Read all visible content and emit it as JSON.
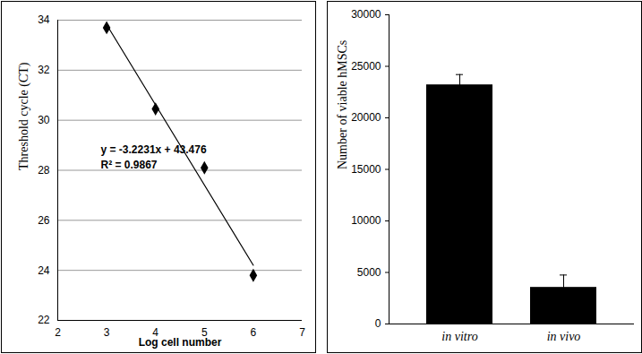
{
  "chart_data": [
    {
      "type": "scatter",
      "x": [
        3,
        4,
        5,
        6
      ],
      "values": [
        33.7,
        30.45,
        28.1,
        23.8
      ],
      "xlabel": "Log cell number",
      "ylabel": "Threshold cycle (CT)",
      "xlim": [
        2,
        7
      ],
      "xticks": [
        2,
        3,
        4,
        5,
        6,
        7
      ],
      "ylim": [
        22,
        34
      ],
      "yticks": [
        22,
        24,
        26,
        28,
        30,
        32,
        34
      ],
      "grid": true,
      "marker": "diamond",
      "color": "#000000",
      "annotations": [
        "y = -3.2231x + 43.476",
        "R² = 0.9867"
      ]
    },
    {
      "type": "bar",
      "categories": [
        "in vitro",
        "in vivo"
      ],
      "values": [
        23200,
        3550
      ],
      "errors": [
        1000,
        1200
      ],
      "ylabel": "Number of viable hMSCs",
      "ylim": [
        0,
        30000
      ],
      "yticks": [
        0,
        5000,
        10000,
        15000,
        20000,
        25000,
        30000
      ],
      "grid": false,
      "color": "#000000"
    }
  ]
}
